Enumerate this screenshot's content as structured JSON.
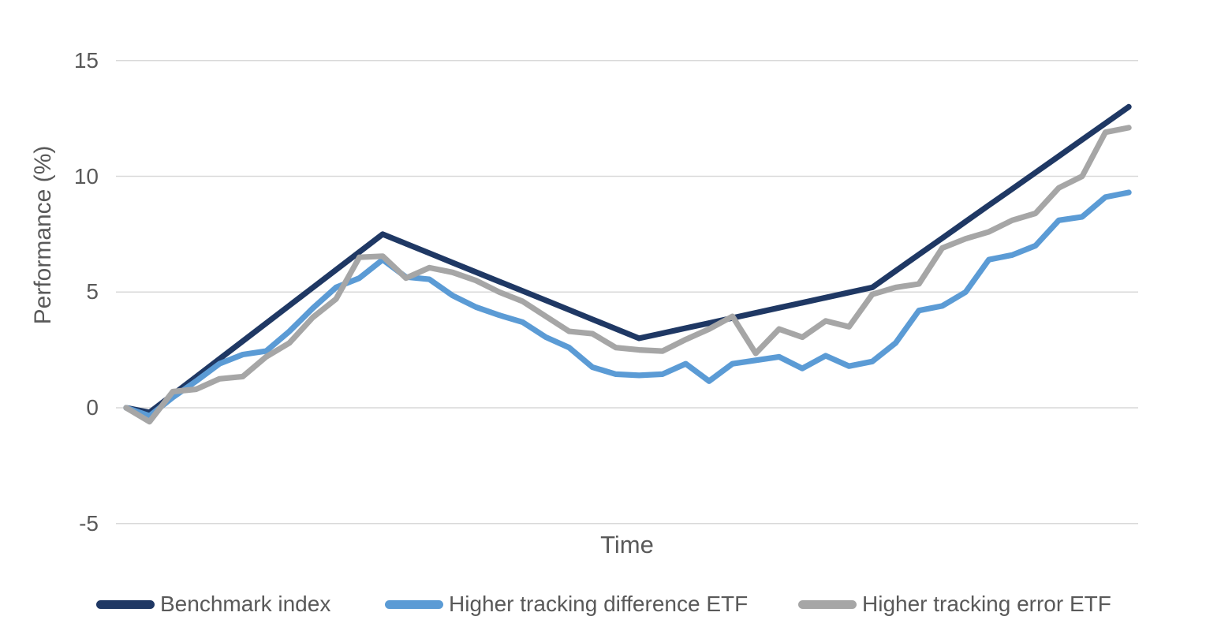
{
  "chart_data": {
    "type": "line",
    "title": "",
    "ylabel": "Performance (%)",
    "xlabel": "Time",
    "ylim": [
      -5,
      15
    ],
    "yticks": [
      15,
      10,
      5,
      0,
      -5
    ],
    "x_tick_labels": [],
    "n_points": 44,
    "grid": "horizontal",
    "legend_position": "bottom",
    "series": [
      {
        "name": "Benchmark index",
        "color": "#1f3864",
        "values": [
          0,
          -0.2,
          0.57,
          1.34,
          2.11,
          2.88,
          3.65,
          4.42,
          5.19,
          5.96,
          6.73,
          7.5,
          7.09,
          6.68,
          6.27,
          5.86,
          5.45,
          5.05,
          4.64,
          4.23,
          3.82,
          3.41,
          3.0,
          3.22,
          3.44,
          3.66,
          3.88,
          4.1,
          4.32,
          4.54,
          4.76,
          4.98,
          5.2,
          5.91,
          6.62,
          7.33,
          8.04,
          8.75,
          9.45,
          10.16,
          10.87,
          11.58,
          12.29,
          13.0
        ]
      },
      {
        "name": "Higher tracking difference ETF",
        "color": "#5b9bd5",
        "values": [
          0,
          -0.35,
          0.45,
          1.15,
          1.9,
          2.3,
          2.45,
          3.3,
          4.3,
          5.2,
          5.6,
          6.4,
          5.65,
          5.55,
          4.85,
          4.35,
          4.0,
          3.7,
          3.05,
          2.6,
          1.75,
          1.45,
          1.4,
          1.45,
          1.9,
          1.15,
          1.9,
          2.05,
          2.2,
          1.7,
          2.25,
          1.8,
          2.0,
          2.8,
          4.2,
          4.4,
          5.0,
          6.4,
          6.6,
          7.0,
          8.1,
          8.25,
          9.1,
          9.3
        ]
      },
      {
        "name": "Higher tracking error ETF",
        "color": "#a6a6a6",
        "values": [
          0,
          -0.6,
          0.7,
          0.8,
          1.25,
          1.35,
          2.2,
          2.8,
          3.9,
          4.7,
          6.5,
          6.55,
          5.6,
          6.05,
          5.85,
          5.5,
          5.0,
          4.6,
          3.95,
          3.3,
          3.2,
          2.6,
          2.5,
          2.45,
          2.95,
          3.4,
          3.95,
          2.35,
          3.4,
          3.05,
          3.75,
          3.5,
          4.9,
          5.2,
          5.35,
          6.9,
          7.3,
          7.6,
          8.1,
          8.4,
          9.5,
          10.0,
          11.9,
          12.1
        ]
      }
    ]
  },
  "colors": {
    "axis_text": "#595959",
    "gridline": "#d9d9d9",
    "background": "#ffffff"
  }
}
